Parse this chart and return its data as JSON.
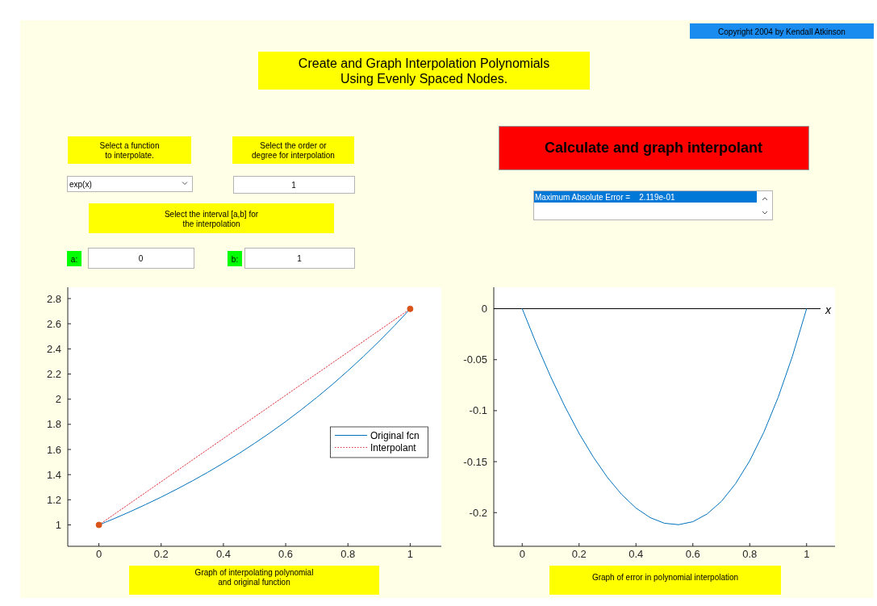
{
  "chart_data": [
    {
      "type": "other",
      "title": "Create and Graph Interpolation Polynomials\nUsing Evenly Spaced Nodes.",
      "annotations": [
        "Copyright 2004 by Kendall Atkinson",
        "Select a function\nto interpolate.",
        "exp(x)",
        "Select the order or\ndegree for interpolation",
        "1",
        "Select the interval [a,b] for\nthe interpolation",
        "a:",
        "0",
        "b:",
        "1",
        "Calculate and graph interpolant",
        "Maximum Absolute Error =    2.119e-01"
      ]
    },
    {
      "type": "line",
      "xlabel": "Graph of interpolating polynomial\nand original function",
      "xlim": [
        -0.1,
        1.1
      ],
      "ylim": [
        0.83,
        2.89
      ],
      "xticks": [
        0,
        0.2,
        0.4,
        0.6,
        0.8,
        1
      ],
      "yticks": [
        1,
        1.2,
        1.4,
        1.6,
        1.8,
        2,
        2.2,
        2.4,
        2.6,
        2.8
      ],
      "legend": "right",
      "series": [
        {
          "name": "Original fcn",
          "color": "#0072bd",
          "x": [
            0,
            0.05,
            0.1,
            0.15,
            0.2,
            0.25,
            0.3,
            0.35,
            0.4,
            0.45,
            0.5,
            0.55,
            0.6,
            0.65,
            0.7,
            0.75,
            0.8,
            0.85,
            0.9,
            0.95,
            1
          ],
          "values": [
            1,
            1.051,
            1.105,
            1.162,
            1.221,
            1.284,
            1.35,
            1.419,
            1.492,
            1.568,
            1.649,
            1.733,
            1.822,
            1.916,
            2.014,
            2.117,
            2.226,
            2.34,
            2.46,
            2.586,
            2.718
          ]
        },
        {
          "name": "Interpolant",
          "color": "#e0303a",
          "line_style": "dotted",
          "x": [
            0,
            1
          ],
          "values": [
            1,
            2.718
          ]
        },
        {
          "type": "scatter",
          "marker": "circle",
          "color": "#d95319",
          "x": [
            0,
            1
          ],
          "values": [
            1,
            2.718
          ]
        }
      ]
    },
    {
      "type": "line",
      "xlabel": "Graph of error in polynomial interpolation",
      "xlim": [
        -0.1,
        1.1
      ],
      "ylim": [
        -0.233,
        0.021
      ],
      "xticks": [
        0,
        0.2,
        0.4,
        0.6,
        0.8,
        1
      ],
      "yticks": [
        -0.2,
        -0.15,
        -0.1,
        -0.05,
        0
      ],
      "ref_lines": [
        {
          "axis": "y",
          "value": 0,
          "label": "x",
          "color": "#000000"
        }
      ],
      "series": [
        {
          "color": "#0072bd",
          "x": [
            0,
            0.05,
            0.1,
            0.15,
            0.2,
            0.25,
            0.3,
            0.35,
            0.4,
            0.45,
            0.5,
            0.55,
            0.6,
            0.65,
            0.7,
            0.75,
            0.8,
            0.85,
            0.9,
            0.95,
            1
          ],
          "values": [
            0,
            -0.0346,
            -0.0667,
            -0.0959,
            -0.1223,
            -0.1455,
            -0.1656,
            -0.1823,
            -0.1955,
            -0.2049,
            -0.2104,
            -0.2118,
            -0.2089,
            -0.2013,
            -0.1891,
            -0.1717,
            -0.1491,
            -0.1209,
            -0.0869,
            -0.0467,
            0
          ]
        }
      ]
    }
  ]
}
